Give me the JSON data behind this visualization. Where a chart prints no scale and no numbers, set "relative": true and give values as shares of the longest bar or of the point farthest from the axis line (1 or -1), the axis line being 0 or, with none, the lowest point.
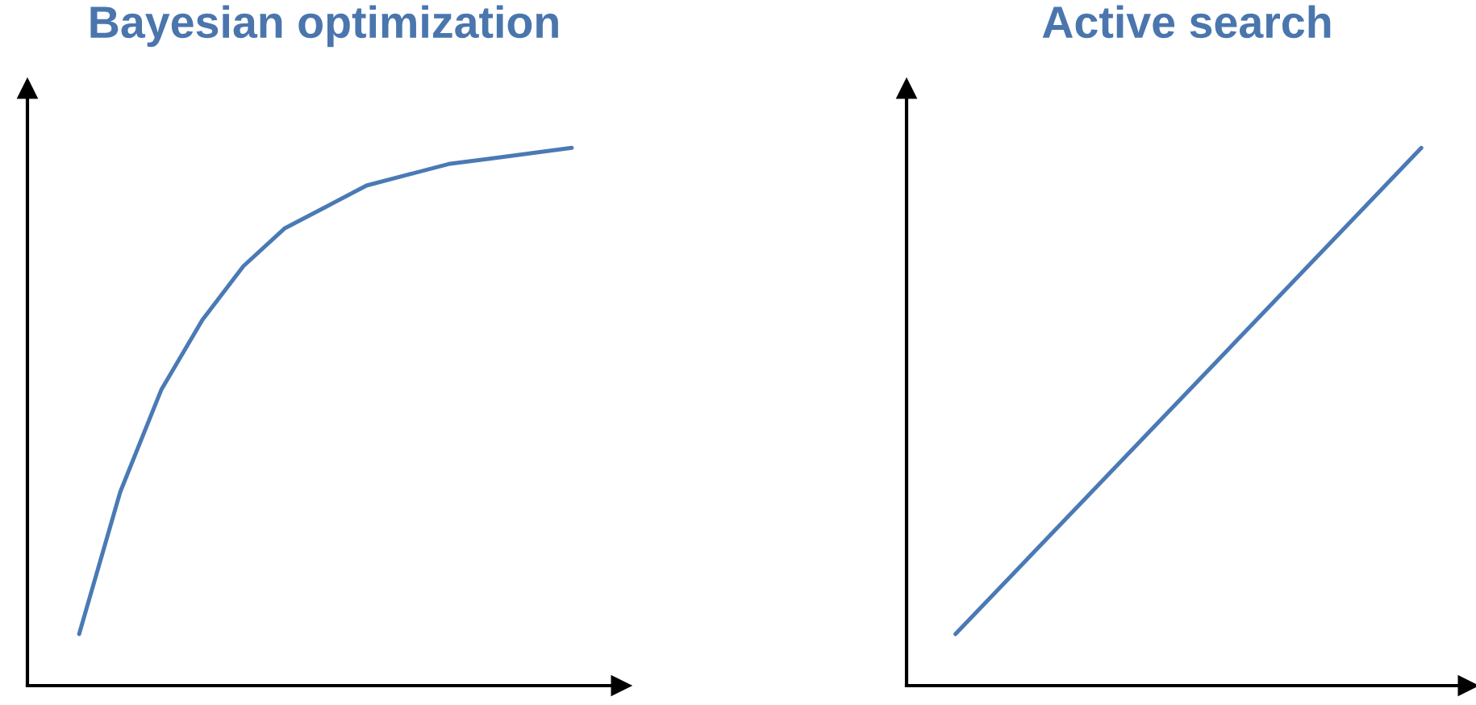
{
  "chart_data": [
    {
      "type": "line",
      "title": "Bayesian optimization",
      "relative": true,
      "categories": [
        null,
        null,
        null,
        null,
        null,
        null,
        null,
        null,
        null,
        null,
        null,
        null,
        null
      ],
      "series": [
        {
          "color": "#4a7ab5",
          "values": [
            0.096,
            0.36,
            0.55,
            0.68,
            0.78,
            0.85,
            0.89,
            0.93,
            0.95,
            0.97,
            0.98,
            0.99,
            1
          ]
        }
      ],
      "grid": false,
      "legend": false
    },
    {
      "type": "line",
      "title": "Active search",
      "relative": true,
      "categories": [
        null,
        null
      ],
      "series": [
        {
          "color": "#4a7ab5",
          "values": [
            0.096,
            1
          ]
        }
      ],
      "grid": false,
      "legend": false
    }
  ]
}
